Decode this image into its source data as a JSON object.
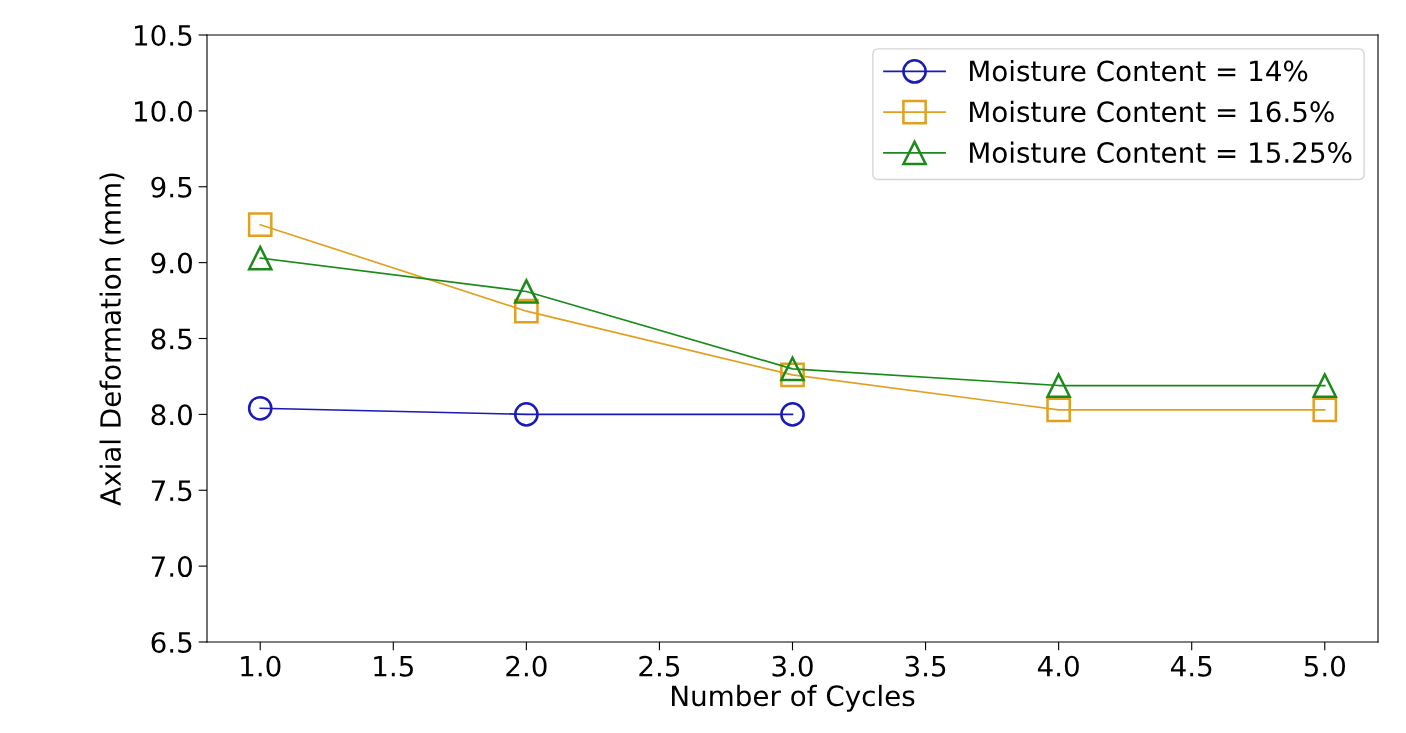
{
  "chart_data": {
    "type": "line",
    "xlabel": "Number of Cycles",
    "ylabel": "Axial Deformation (mm)",
    "x": [
      1,
      2,
      3,
      4,
      5
    ],
    "series": [
      {
        "name": "Moisture Content = 14%",
        "color": "#1a1ab8",
        "marker": "circle",
        "values": [
          8.04,
          8.0,
          8.0,
          null,
          null
        ]
      },
      {
        "name": "Moisture Content = 16.5%",
        "color": "#e0a020",
        "marker": "square",
        "values": [
          9.25,
          8.68,
          8.26,
          8.03,
          8.03
        ]
      },
      {
        "name": "Moisture Content = 15.25%",
        "color": "#1a8a1a",
        "marker": "triangle",
        "values": [
          9.03,
          8.81,
          8.3,
          8.19,
          8.19
        ]
      }
    ],
    "xlim": [
      0.8,
      5.2
    ],
    "xticks": [
      {
        "value": 1,
        "label": "1.0"
      },
      {
        "value": 1.5,
        "label": "1.5"
      },
      {
        "value": 2,
        "label": "2.0"
      },
      {
        "value": 2.5,
        "label": "2.5"
      },
      {
        "value": 3,
        "label": "3.0"
      },
      {
        "value": 3.5,
        "label": "3.5"
      },
      {
        "value": 4,
        "label": "4.0"
      },
      {
        "value": 4.5,
        "label": "4.5"
      },
      {
        "value": 5,
        "label": "5.0"
      }
    ],
    "ylim": [
      6.5,
      10.5
    ],
    "yticks": [
      {
        "value": 6.5,
        "label": "6.5"
      },
      {
        "value": 7,
        "label": "7.0"
      },
      {
        "value": 7.5,
        "label": "7.5"
      },
      {
        "value": 8,
        "label": "8.0"
      },
      {
        "value": 8.5,
        "label": "8.5"
      },
      {
        "value": 9,
        "label": "9.0"
      },
      {
        "value": 9.5,
        "label": "9.5"
      },
      {
        "value": 10,
        "label": "10.0"
      },
      {
        "value": 10.5,
        "label": "10.5"
      }
    ],
    "grid": false,
    "legend": "top right",
    "line_style": "solid"
  }
}
